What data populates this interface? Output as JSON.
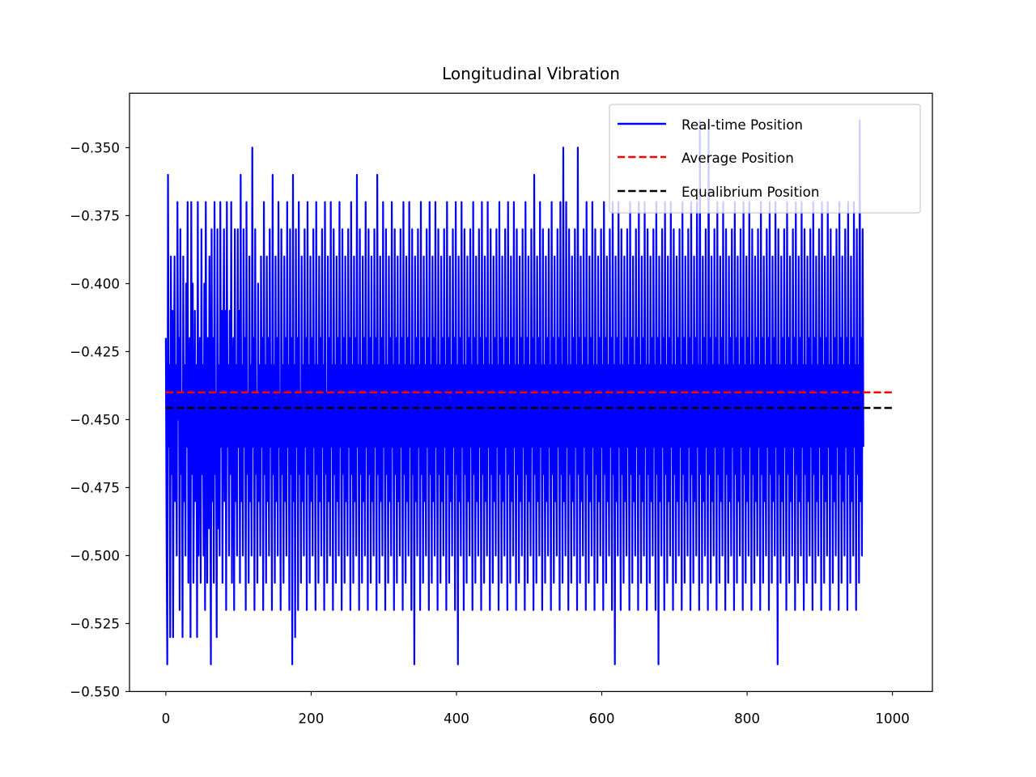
{
  "chart_data": {
    "type": "line",
    "title": "Longitudinal Vibration",
    "xlabel": "",
    "ylabel": "",
    "xlim": [
      -50,
      1055
    ],
    "ylim": [
      -0.55,
      -0.33
    ],
    "xticks": [
      0,
      200,
      400,
      600,
      800,
      1000
    ],
    "xtick_labels": [
      "0",
      "200",
      "400",
      "600",
      "800",
      "1000"
    ],
    "yticks": [
      -0.35,
      -0.375,
      -0.4,
      -0.425,
      -0.45,
      -0.475,
      -0.5,
      -0.525,
      -0.55
    ],
    "ytick_labels": [
      "−0.350",
      "−0.375",
      "−0.400",
      "−0.425",
      "−0.450",
      "−0.475",
      "−0.500",
      "−0.525",
      "−0.550"
    ],
    "grid": false,
    "legend_position": "upper right",
    "series": [
      {
        "name": "Real-time Position",
        "style": "solid",
        "color": "#0000ff",
        "x_start": 0,
        "x_step": 1,
        "values": [
          -0.42,
          -0.49,
          -0.54,
          -0.36,
          -0.46,
          -0.43,
          -0.53,
          -0.39,
          -0.47,
          -0.41,
          -0.53,
          -0.44,
          -0.39,
          -0.48,
          -0.43,
          -0.5,
          -0.37,
          -0.45,
          -0.42,
          -0.52,
          -0.38,
          -0.47,
          -0.44,
          -0.53,
          -0.39,
          -0.48,
          -0.43,
          -0.5,
          -0.4,
          -0.46,
          -0.37,
          -0.51,
          -0.44,
          -0.42,
          -0.53,
          -0.37,
          -0.47,
          -0.4,
          -0.51,
          -0.46,
          -0.41,
          -0.48,
          -0.43,
          -0.53,
          -0.37,
          -0.5,
          -0.44,
          -0.42,
          -0.51,
          -0.38,
          -0.47,
          -0.43,
          -0.5,
          -0.4,
          -0.52,
          -0.37,
          -0.46,
          -0.51,
          -0.42,
          -0.49,
          -0.39,
          -0.45,
          -0.54,
          -0.38,
          -0.48,
          -0.42,
          -0.51,
          -0.37,
          -0.47,
          -0.44,
          -0.53,
          -0.38,
          -0.49,
          -0.43,
          -0.5,
          -0.37,
          -0.46,
          -0.41,
          -0.51,
          -0.43,
          -0.38,
          -0.48,
          -0.41,
          -0.52,
          -0.37,
          -0.46,
          -0.43,
          -0.5,
          -0.41,
          -0.47,
          -0.37,
          -0.51,
          -0.44,
          -0.42,
          -0.52,
          -0.38,
          -0.48,
          -0.43,
          -0.5,
          -0.38,
          -0.46,
          -0.41,
          -0.51,
          -0.36,
          -0.48,
          -0.43,
          -0.5,
          -0.38,
          -0.46,
          -0.42,
          -0.52,
          -0.37,
          -0.47,
          -0.44,
          -0.51,
          -0.39,
          -0.48,
          -0.43,
          -0.5,
          -0.35,
          -0.46,
          -0.42,
          -0.52,
          -0.38,
          -0.47,
          -0.44,
          -0.51,
          -0.4,
          -0.48,
          -0.43,
          -0.5,
          -0.39,
          -0.46,
          -0.42,
          -0.52,
          -0.37,
          -0.47,
          -0.43,
          -0.51,
          -0.39,
          -0.48,
          -0.42,
          -0.5,
          -0.38,
          -0.46,
          -0.43,
          -0.52,
          -0.36,
          -0.47,
          -0.43,
          -0.51,
          -0.39,
          -0.48,
          -0.42,
          -0.5,
          -0.37,
          -0.46,
          -0.44,
          -0.52,
          -0.38,
          -0.47,
          -0.43,
          -0.51,
          -0.39,
          -0.48,
          -0.42,
          -0.5,
          -0.37,
          -0.46,
          -0.43,
          -0.52,
          -0.38,
          -0.47,
          -0.42,
          -0.54,
          -0.36,
          -0.48,
          -0.43,
          -0.53,
          -0.38,
          -0.46,
          -0.42,
          -0.52,
          -0.37,
          -0.47,
          -0.44,
          -0.51,
          -0.39,
          -0.48,
          -0.43,
          -0.5,
          -0.38,
          -0.46,
          -0.42,
          -0.52,
          -0.37,
          -0.47,
          -0.43,
          -0.51,
          -0.39,
          -0.48,
          -0.42,
          -0.5,
          -0.38,
          -0.46,
          -0.43,
          -0.52,
          -0.37,
          -0.47,
          -0.43,
          -0.51,
          -0.39,
          -0.48,
          -0.42,
          -0.5,
          -0.38,
          -0.46,
          -0.43,
          -0.52,
          -0.37,
          -0.47,
          -0.44,
          -0.51,
          -0.39,
          -0.48,
          -0.42,
          -0.5,
          -0.37,
          -0.46,
          -0.43,
          -0.52,
          -0.38,
          -0.47,
          -0.43,
          -0.51,
          -0.39,
          -0.48,
          -0.42,
          -0.5,
          -0.37,
          -0.46,
          -0.43,
          -0.52,
          -0.38,
          -0.47,
          -0.42,
          -0.51,
          -0.39,
          -0.48,
          -0.43,
          -0.5,
          -0.38,
          -0.46,
          -0.42,
          -0.52,
          -0.37,
          -0.47,
          -0.43,
          -0.51,
          -0.39,
          -0.48,
          -0.42,
          -0.5,
          -0.36,
          -0.46,
          -0.43,
          -0.52,
          -0.38,
          -0.47,
          -0.43,
          -0.51,
          -0.39,
          -0.48,
          -0.42,
          -0.5,
          -0.37,
          -0.46,
          -0.43,
          -0.52,
          -0.38,
          -0.47,
          -0.42,
          -0.51,
          -0.39,
          -0.48,
          -0.43,
          -0.5,
          -0.38,
          -0.46,
          -0.42,
          -0.52,
          -0.36,
          -0.47,
          -0.43,
          -0.51,
          -0.39,
          -0.48,
          -0.42,
          -0.5,
          -0.37,
          -0.46,
          -0.43,
          -0.52,
          -0.38,
          -0.47,
          -0.43,
          -0.51,
          -0.39,
          -0.48,
          -0.42,
          -0.5,
          -0.37,
          -0.46,
          -0.43,
          -0.52,
          -0.38,
          -0.47,
          -0.42,
          -0.51,
          -0.39,
          -0.48,
          -0.43,
          -0.5,
          -0.38,
          -0.46,
          -0.42,
          -0.52,
          -0.37,
          -0.47,
          -0.43,
          -0.51,
          -0.39,
          -0.48,
          -0.42,
          -0.5,
          -0.37,
          -0.46,
          -0.43,
          -0.52,
          -0.38,
          -0.47,
          -0.43,
          -0.54,
          -0.39,
          -0.48,
          -0.42,
          -0.5,
          -0.38,
          -0.46,
          -0.43,
          -0.52,
          -0.37,
          -0.47,
          -0.42,
          -0.51,
          -0.39,
          -0.48,
          -0.43,
          -0.5,
          -0.38,
          -0.46,
          -0.42,
          -0.52,
          -0.37,
          -0.47,
          -0.43,
          -0.51,
          -0.39,
          -0.48,
          -0.42,
          -0.5,
          -0.37,
          -0.46,
          -0.43,
          -0.52,
          -0.38,
          -0.47,
          -0.43,
          -0.51,
          -0.39,
          -0.48,
          -0.42,
          -0.5,
          -0.38,
          -0.46,
          -0.43,
          -0.52,
          -0.37,
          -0.47,
          -0.42,
          -0.51,
          -0.39,
          -0.48,
          -0.43,
          -0.5,
          -0.38,
          -0.46,
          -0.42,
          -0.52,
          -0.37,
          -0.47,
          -0.43,
          -0.54,
          -0.39,
          -0.48,
          -0.42,
          -0.5,
          -0.37,
          -0.46,
          -0.43,
          -0.52,
          -0.38,
          -0.47,
          -0.43,
          -0.51,
          -0.39,
          -0.48,
          -0.42,
          -0.5,
          -0.38,
          -0.46,
          -0.43,
          -0.52,
          -0.37,
          -0.47,
          -0.42,
          -0.51,
          -0.39,
          -0.48,
          -0.43,
          -0.5,
          -0.38,
          -0.46,
          -0.42,
          -0.52,
          -0.37,
          -0.47,
          -0.43,
          -0.51,
          -0.39,
          -0.48,
          -0.42,
          -0.5,
          -0.37,
          -0.46,
          -0.43,
          -0.52,
          -0.38,
          -0.47,
          -0.43,
          -0.51,
          -0.39,
          -0.48,
          -0.42,
          -0.5,
          -0.38,
          -0.46,
          -0.43,
          -0.52,
          -0.37,
          -0.47,
          -0.42,
          -0.51,
          -0.39,
          -0.48,
          -0.43,
          -0.5,
          -0.38,
          -0.46,
          -0.42,
          -0.52,
          -0.37,
          -0.47,
          -0.43,
          -0.51,
          -0.39,
          -0.48,
          -0.42,
          -0.5,
          -0.37,
          -0.46,
          -0.43,
          -0.52,
          -0.38,
          -0.47,
          -0.43,
          -0.51,
          -0.39,
          -0.48,
          -0.42,
          -0.5,
          -0.38,
          -0.46,
          -0.43,
          -0.52,
          -0.37,
          -0.47,
          -0.42,
          -0.51,
          -0.39,
          -0.48,
          -0.43,
          -0.5,
          -0.38,
          -0.46,
          -0.42,
          -0.52,
          -0.36,
          -0.47,
          -0.43,
          -0.51,
          -0.39,
          -0.48,
          -0.42,
          -0.5,
          -0.37,
          -0.46,
          -0.43,
          -0.52,
          -0.38,
          -0.47,
          -0.43,
          -0.51,
          -0.39,
          -0.48,
          -0.42,
          -0.5,
          -0.38,
          -0.46,
          -0.43,
          -0.52,
          -0.37,
          -0.47,
          -0.42,
          -0.51,
          -0.39,
          -0.48,
          -0.43,
          -0.5,
          -0.38,
          -0.46,
          -0.42,
          -0.52,
          -0.37,
          -0.47,
          -0.43,
          -0.51,
          -0.35,
          -0.48,
          -0.42,
          -0.5,
          -0.37,
          -0.46,
          -0.43,
          -0.52,
          -0.38,
          -0.47,
          -0.43,
          -0.51,
          -0.39,
          -0.48,
          -0.42,
          -0.5,
          -0.38,
          -0.46,
          -0.43,
          -0.52,
          -0.35,
          -0.47,
          -0.42,
          -0.51,
          -0.39,
          -0.48,
          -0.43,
          -0.5,
          -0.38,
          -0.46,
          -0.42,
          -0.52,
          -0.37,
          -0.47,
          -0.43,
          -0.51,
          -0.39,
          -0.48,
          -0.42,
          -0.5,
          -0.37,
          -0.46,
          -0.43,
          -0.52,
          -0.38,
          -0.47,
          -0.43,
          -0.51,
          -0.39,
          -0.48,
          -0.42,
          -0.5,
          -0.38,
          -0.46,
          -0.43,
          -0.52,
          -0.37,
          -0.47,
          -0.42,
          -0.51,
          -0.39,
          -0.48,
          -0.43,
          -0.5,
          -0.38,
          -0.46,
          -0.42,
          -0.52,
          -0.37,
          -0.47,
          -0.43,
          -0.54,
          -0.39,
          -0.48,
          -0.42,
          -0.5,
          -0.37,
          -0.46,
          -0.43,
          -0.52,
          -0.38,
          -0.47,
          -0.43,
          -0.51,
          -0.39,
          -0.48,
          -0.42,
          -0.5,
          -0.38,
          -0.46,
          -0.43,
          -0.52,
          -0.37,
          -0.47,
          -0.42,
          -0.51,
          -0.39,
          -0.48,
          -0.43,
          -0.5,
          -0.38,
          -0.46,
          -0.42,
          -0.52,
          -0.37,
          -0.47,
          -0.43,
          -0.51,
          -0.39,
          -0.48,
          -0.42,
          -0.5,
          -0.37,
          -0.46,
          -0.43,
          -0.52,
          -0.38,
          -0.47,
          -0.43,
          -0.51,
          -0.39,
          -0.48,
          -0.42,
          -0.5,
          -0.38,
          -0.46,
          -0.43,
          -0.52,
          -0.37,
          -0.47,
          -0.42,
          -0.54,
          -0.39,
          -0.48,
          -0.43,
          -0.5,
          -0.38,
          -0.46,
          -0.42,
          -0.52,
          -0.37,
          -0.47,
          -0.43,
          -0.51,
          -0.39,
          -0.48,
          -0.42,
          -0.5,
          -0.37,
          -0.46,
          -0.43,
          -0.52,
          -0.38,
          -0.47,
          -0.43,
          -0.51,
          -0.39,
          -0.48,
          -0.42,
          -0.5,
          -0.38,
          -0.46,
          -0.43,
          -0.52,
          -0.37,
          -0.47,
          -0.42,
          -0.51,
          -0.39,
          -0.48,
          -0.43,
          -0.5,
          -0.38,
          -0.46,
          -0.42,
          -0.52,
          -0.37,
          -0.47,
          -0.43,
          -0.51,
          -0.39,
          -0.48,
          -0.42,
          -0.5,
          -0.37,
          -0.46,
          -0.43,
          -0.52,
          -0.34,
          -0.47,
          -0.43,
          -0.51,
          -0.39,
          -0.48,
          -0.42,
          -0.5,
          -0.38,
          -0.46,
          -0.43,
          -0.52,
          -0.34,
          -0.47,
          -0.42,
          -0.51,
          -0.39,
          -0.48,
          -0.43,
          -0.5,
          -0.38,
          -0.46,
          -0.42,
          -0.52,
          -0.37,
          -0.47,
          -0.43,
          -0.51,
          -0.39,
          -0.48,
          -0.42,
          -0.5,
          -0.37,
          -0.46,
          -0.43,
          -0.52,
          -0.38,
          -0.47,
          -0.43,
          -0.51,
          -0.39,
          -0.48,
          -0.42,
          -0.5,
          -0.38,
          -0.46,
          -0.43,
          -0.52,
          -0.37,
          -0.47,
          -0.42,
          -0.51,
          -0.39,
          -0.48,
          -0.43,
          -0.5,
          -0.38,
          -0.46,
          -0.42,
          -0.52,
          -0.37,
          -0.47,
          -0.43,
          -0.51,
          -0.39,
          -0.48,
          -0.42,
          -0.5,
          -0.37,
          -0.46,
          -0.43,
          -0.52,
          -0.38,
          -0.47,
          -0.43,
          -0.51,
          -0.39,
          -0.48,
          -0.42,
          -0.5,
          -0.38,
          -0.46,
          -0.43,
          -0.52,
          -0.37,
          -0.47,
          -0.42,
          -0.51,
          -0.39,
          -0.48,
          -0.43,
          -0.5,
          -0.38,
          -0.46,
          -0.42,
          -0.52,
          -0.37,
          -0.47,
          -0.43,
          -0.51,
          -0.39,
          -0.48,
          -0.42,
          -0.5,
          -0.37,
          -0.46,
          -0.43,
          -0.54,
          -0.38,
          -0.47,
          -0.43,
          -0.51,
          -0.39,
          -0.48,
          -0.42,
          -0.5,
          -0.38,
          -0.46,
          -0.43,
          -0.52,
          -0.37,
          -0.47,
          -0.42,
          -0.51,
          -0.39,
          -0.48,
          -0.43,
          -0.5,
          -0.38,
          -0.46,
          -0.42,
          -0.52,
          -0.37,
          -0.47,
          -0.43,
          -0.51,
          -0.39,
          -0.48,
          -0.42,
          -0.5,
          -0.37,
          -0.46,
          -0.43,
          -0.52,
          -0.38,
          -0.47,
          -0.43,
          -0.51,
          -0.39,
          -0.48,
          -0.42,
          -0.5,
          -0.38,
          -0.46,
          -0.43,
          -0.52,
          -0.37,
          -0.47,
          -0.42,
          -0.51,
          -0.39,
          -0.48,
          -0.43,
          -0.5,
          -0.38,
          -0.46,
          -0.42,
          -0.52,
          -0.37,
          -0.47,
          -0.43,
          -0.51,
          -0.39,
          -0.48,
          -0.42,
          -0.5,
          -0.37,
          -0.46,
          -0.43,
          -0.52,
          -0.38,
          -0.47,
          -0.43,
          -0.51,
          -0.39,
          -0.48,
          -0.42,
          -0.5,
          -0.38,
          -0.46,
          -0.43,
          -0.52,
          -0.37,
          -0.47,
          -0.42,
          -0.51,
          -0.39,
          -0.48,
          -0.43,
          -0.5,
          -0.38,
          -0.46,
          -0.42,
          -0.52,
          -0.37,
          -0.47,
          -0.43,
          -0.51,
          -0.39,
          -0.48,
          -0.42,
          -0.5,
          -0.37,
          -0.46,
          -0.43,
          -0.52,
          -0.38,
          -0.47,
          -0.43,
          -0.51,
          -0.34,
          -0.48,
          -0.42,
          -0.5,
          -0.38,
          -0.46
        ]
      },
      {
        "name": "Average Position",
        "style": "dashed",
        "color": "#ff0000",
        "x": [
          0,
          1003
        ],
        "values": [
          -0.44,
          -0.44
        ]
      },
      {
        "name": "Equalibrium Position",
        "style": "dashed",
        "color": "#000000",
        "x": [
          0,
          1003
        ],
        "values": [
          -0.4457,
          -0.4457
        ]
      }
    ]
  }
}
